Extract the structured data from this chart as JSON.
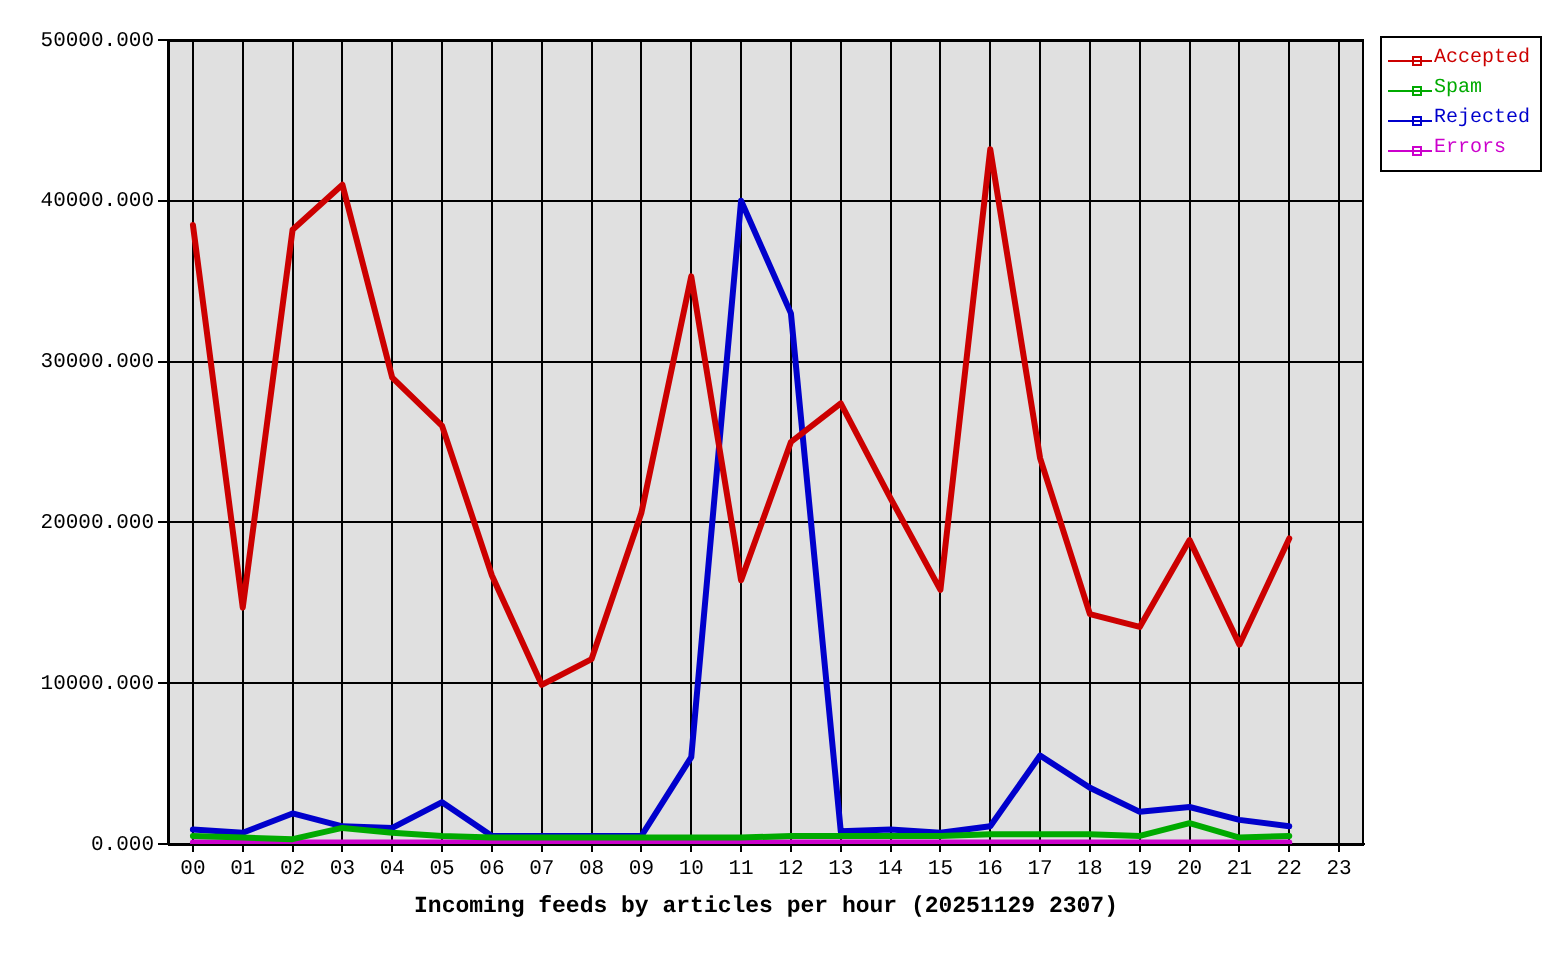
{
  "chart_data": {
    "type": "line",
    "xlabel": "Incoming feeds by articles per hour (20251129 2307)",
    "categories": [
      "00",
      "01",
      "02",
      "03",
      "04",
      "05",
      "06",
      "07",
      "08",
      "09",
      "10",
      "11",
      "12",
      "13",
      "14",
      "15",
      "16",
      "17",
      "18",
      "19",
      "20",
      "21",
      "22",
      "23"
    ],
    "series": [
      {
        "name": "Accepted",
        "color": "#cc0000",
        "values": [
          38500,
          14700,
          38200,
          41000,
          29000,
          26000,
          16700,
          9900,
          11500,
          20600,
          35300,
          16400,
          25000,
          27400,
          21500,
          15800,
          43200,
          24000,
          14300,
          13500,
          18900,
          12400,
          19000,
          null
        ]
      },
      {
        "name": "Spam",
        "color": "#00aa00",
        "values": [
          500,
          400,
          300,
          1000,
          700,
          500,
          400,
          400,
          400,
          400,
          400,
          400,
          500,
          500,
          500,
          500,
          600,
          600,
          600,
          500,
          1300,
          400,
          500,
          null
        ]
      },
      {
        "name": "Rejected",
        "color": "#0000cc",
        "values": [
          900,
          700,
          1900,
          1100,
          1000,
          2600,
          500,
          500,
          500,
          500,
          5400,
          40000,
          33000,
          800,
          900,
          700,
          1100,
          5500,
          3500,
          2000,
          2300,
          1500,
          1100,
          null
        ]
      },
      {
        "name": "Errors",
        "color": "#cc00cc",
        "values": [
          100,
          100,
          100,
          100,
          100,
          100,
          100,
          100,
          100,
          100,
          100,
          100,
          100,
          100,
          100,
          100,
          100,
          100,
          100,
          100,
          100,
          100,
          100,
          null
        ]
      }
    ],
    "ylim": [
      0,
      50000
    ],
    "yticks": [
      {
        "value": 0,
        "label": "0.000"
      },
      {
        "value": 10000,
        "label": "10000.000"
      },
      {
        "value": 20000,
        "label": "20000.000"
      },
      {
        "value": 30000,
        "label": "30000.000"
      },
      {
        "value": 40000,
        "label": "40000.000"
      },
      {
        "value": 50000,
        "label": "50000.000"
      }
    ],
    "grid": true,
    "legend": "top right",
    "marker": "none",
    "line_style": "solid"
  }
}
